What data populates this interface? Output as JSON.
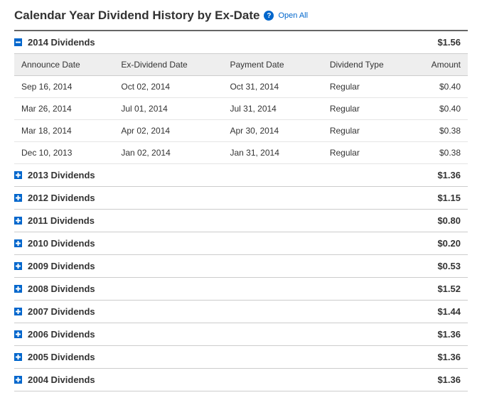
{
  "title": "Calendar Year Dividend History by Ex-Date",
  "open_all_label": "Open All",
  "columns": {
    "announce": "Announce Date",
    "ex": "Ex-Dividend Date",
    "payment": "Payment Date",
    "type": "Dividend Type",
    "amount": "Amount"
  },
  "years": [
    {
      "label": "2014 Dividends",
      "total": "$1.56",
      "expanded": true,
      "rows": [
        {
          "announce": "Sep 16, 2014",
          "ex": "Oct 02, 2014",
          "payment": "Oct 31, 2014",
          "type": "Regular",
          "amount": "$0.40"
        },
        {
          "announce": "Mar 26, 2014",
          "ex": "Jul 01, 2014",
          "payment": "Jul 31, 2014",
          "type": "Regular",
          "amount": "$0.40"
        },
        {
          "announce": "Mar 18, 2014",
          "ex": "Apr 02, 2014",
          "payment": "Apr 30, 2014",
          "type": "Regular",
          "amount": "$0.38"
        },
        {
          "announce": "Dec 10, 2013",
          "ex": "Jan 02, 2014",
          "payment": "Jan 31, 2014",
          "type": "Regular",
          "amount": "$0.38"
        }
      ]
    },
    {
      "label": "2013 Dividends",
      "total": "$1.36",
      "expanded": false
    },
    {
      "label": "2012 Dividends",
      "total": "$1.15",
      "expanded": false
    },
    {
      "label": "2011 Dividends",
      "total": "$0.80",
      "expanded": false
    },
    {
      "label": "2010 Dividends",
      "total": "$0.20",
      "expanded": false
    },
    {
      "label": "2009 Dividends",
      "total": "$0.53",
      "expanded": false
    },
    {
      "label": "2008 Dividends",
      "total": "$1.52",
      "expanded": false
    },
    {
      "label": "2007 Dividends",
      "total": "$1.44",
      "expanded": false
    },
    {
      "label": "2006 Dividends",
      "total": "$1.36",
      "expanded": false
    },
    {
      "label": "2005 Dividends",
      "total": "$1.36",
      "expanded": false
    },
    {
      "label": "2004 Dividends",
      "total": "$1.36",
      "expanded": false
    }
  ],
  "colors": {
    "link": "#0066cc",
    "border": "#cccccc",
    "header_bg": "#eeeeee",
    "text": "#333333"
  }
}
